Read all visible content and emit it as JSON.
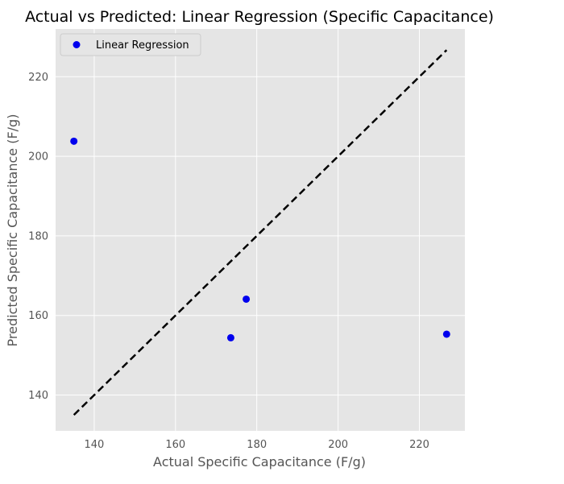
{
  "chart_data": {
    "type": "scatter",
    "title": "Actual vs Predicted: Linear Regression (Specific Capacitance)",
    "xlabel": "Actual Specific Capacitance (F/g)",
    "ylabel": "Predicted Specific Capacitance (F/g)",
    "xlim": [
      130.5,
      231.2
    ],
    "ylim": [
      131.0,
      232.0
    ],
    "xticks": [
      140,
      160,
      180,
      200,
      220
    ],
    "yticks": [
      140,
      160,
      180,
      200,
      220
    ],
    "grid": true,
    "legend_position": "upper-left",
    "series": [
      {
        "name": "Linear Regression",
        "color": "#0000ee",
        "points": [
          {
            "x": 135.0,
            "y": 203.8
          },
          {
            "x": 173.6,
            "y": 154.4
          },
          {
            "x": 177.4,
            "y": 164.1
          },
          {
            "x": 226.7,
            "y": 155.3
          }
        ]
      }
    ],
    "reference_line": {
      "style": "dashed",
      "color": "#000000",
      "from": {
        "x": 135.0,
        "y": 135.0
      },
      "to": {
        "x": 226.7,
        "y": 226.7
      }
    },
    "colors": {
      "plot_background": "#e5e5e5",
      "grid": "#ffffff",
      "axis_text": "#555555"
    }
  }
}
